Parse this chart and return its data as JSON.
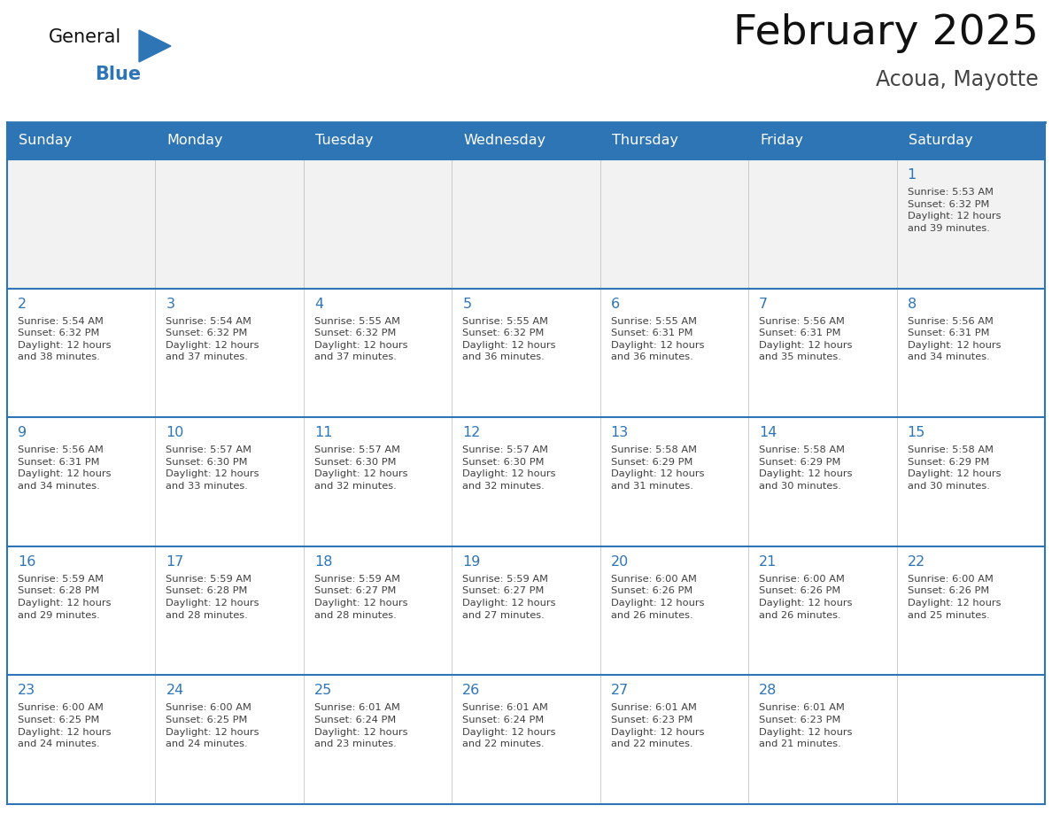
{
  "title": "February 2025",
  "subtitle": "Acoua, Mayotte",
  "header_bg": "#2E75B6",
  "header_text_color": "#FFFFFF",
  "cell_bg_alt": "#F2F2F2",
  "cell_border_color": "#2E75B6",
  "day_number_color": "#2E75B6",
  "cell_text_color": "#404040",
  "title_color": "#111111",
  "subtitle_color": "#444444",
  "days_of_week": [
    "Sunday",
    "Monday",
    "Tuesday",
    "Wednesday",
    "Thursday",
    "Friday",
    "Saturday"
  ],
  "logo_general_color": "#111111",
  "logo_blue_color": "#2E75B6",
  "weeks": [
    [
      {
        "day": 0,
        "text": ""
      },
      {
        "day": 0,
        "text": ""
      },
      {
        "day": 0,
        "text": ""
      },
      {
        "day": 0,
        "text": ""
      },
      {
        "day": 0,
        "text": ""
      },
      {
        "day": 0,
        "text": ""
      },
      {
        "day": 1,
        "text": "Sunrise: 5:53 AM\nSunset: 6:32 PM\nDaylight: 12 hours\nand 39 minutes."
      }
    ],
    [
      {
        "day": 2,
        "text": "Sunrise: 5:54 AM\nSunset: 6:32 PM\nDaylight: 12 hours\nand 38 minutes."
      },
      {
        "day": 3,
        "text": "Sunrise: 5:54 AM\nSunset: 6:32 PM\nDaylight: 12 hours\nand 37 minutes."
      },
      {
        "day": 4,
        "text": "Sunrise: 5:55 AM\nSunset: 6:32 PM\nDaylight: 12 hours\nand 37 minutes."
      },
      {
        "day": 5,
        "text": "Sunrise: 5:55 AM\nSunset: 6:32 PM\nDaylight: 12 hours\nand 36 minutes."
      },
      {
        "day": 6,
        "text": "Sunrise: 5:55 AM\nSunset: 6:31 PM\nDaylight: 12 hours\nand 36 minutes."
      },
      {
        "day": 7,
        "text": "Sunrise: 5:56 AM\nSunset: 6:31 PM\nDaylight: 12 hours\nand 35 minutes."
      },
      {
        "day": 8,
        "text": "Sunrise: 5:56 AM\nSunset: 6:31 PM\nDaylight: 12 hours\nand 34 minutes."
      }
    ],
    [
      {
        "day": 9,
        "text": "Sunrise: 5:56 AM\nSunset: 6:31 PM\nDaylight: 12 hours\nand 34 minutes."
      },
      {
        "day": 10,
        "text": "Sunrise: 5:57 AM\nSunset: 6:30 PM\nDaylight: 12 hours\nand 33 minutes."
      },
      {
        "day": 11,
        "text": "Sunrise: 5:57 AM\nSunset: 6:30 PM\nDaylight: 12 hours\nand 32 minutes."
      },
      {
        "day": 12,
        "text": "Sunrise: 5:57 AM\nSunset: 6:30 PM\nDaylight: 12 hours\nand 32 minutes."
      },
      {
        "day": 13,
        "text": "Sunrise: 5:58 AM\nSunset: 6:29 PM\nDaylight: 12 hours\nand 31 minutes."
      },
      {
        "day": 14,
        "text": "Sunrise: 5:58 AM\nSunset: 6:29 PM\nDaylight: 12 hours\nand 30 minutes."
      },
      {
        "day": 15,
        "text": "Sunrise: 5:58 AM\nSunset: 6:29 PM\nDaylight: 12 hours\nand 30 minutes."
      }
    ],
    [
      {
        "day": 16,
        "text": "Sunrise: 5:59 AM\nSunset: 6:28 PM\nDaylight: 12 hours\nand 29 minutes."
      },
      {
        "day": 17,
        "text": "Sunrise: 5:59 AM\nSunset: 6:28 PM\nDaylight: 12 hours\nand 28 minutes."
      },
      {
        "day": 18,
        "text": "Sunrise: 5:59 AM\nSunset: 6:27 PM\nDaylight: 12 hours\nand 28 minutes."
      },
      {
        "day": 19,
        "text": "Sunrise: 5:59 AM\nSunset: 6:27 PM\nDaylight: 12 hours\nand 27 minutes."
      },
      {
        "day": 20,
        "text": "Sunrise: 6:00 AM\nSunset: 6:26 PM\nDaylight: 12 hours\nand 26 minutes."
      },
      {
        "day": 21,
        "text": "Sunrise: 6:00 AM\nSunset: 6:26 PM\nDaylight: 12 hours\nand 26 minutes."
      },
      {
        "day": 22,
        "text": "Sunrise: 6:00 AM\nSunset: 6:26 PM\nDaylight: 12 hours\nand 25 minutes."
      }
    ],
    [
      {
        "day": 23,
        "text": "Sunrise: 6:00 AM\nSunset: 6:25 PM\nDaylight: 12 hours\nand 24 minutes."
      },
      {
        "day": 24,
        "text": "Sunrise: 6:00 AM\nSunset: 6:25 PM\nDaylight: 12 hours\nand 24 minutes."
      },
      {
        "day": 25,
        "text": "Sunrise: 6:01 AM\nSunset: 6:24 PM\nDaylight: 12 hours\nand 23 minutes."
      },
      {
        "day": 26,
        "text": "Sunrise: 6:01 AM\nSunset: 6:24 PM\nDaylight: 12 hours\nand 22 minutes."
      },
      {
        "day": 27,
        "text": "Sunrise: 6:01 AM\nSunset: 6:23 PM\nDaylight: 12 hours\nand 22 minutes."
      },
      {
        "day": 28,
        "text": "Sunrise: 6:01 AM\nSunset: 6:23 PM\nDaylight: 12 hours\nand 21 minutes."
      },
      {
        "day": 0,
        "text": ""
      }
    ]
  ]
}
